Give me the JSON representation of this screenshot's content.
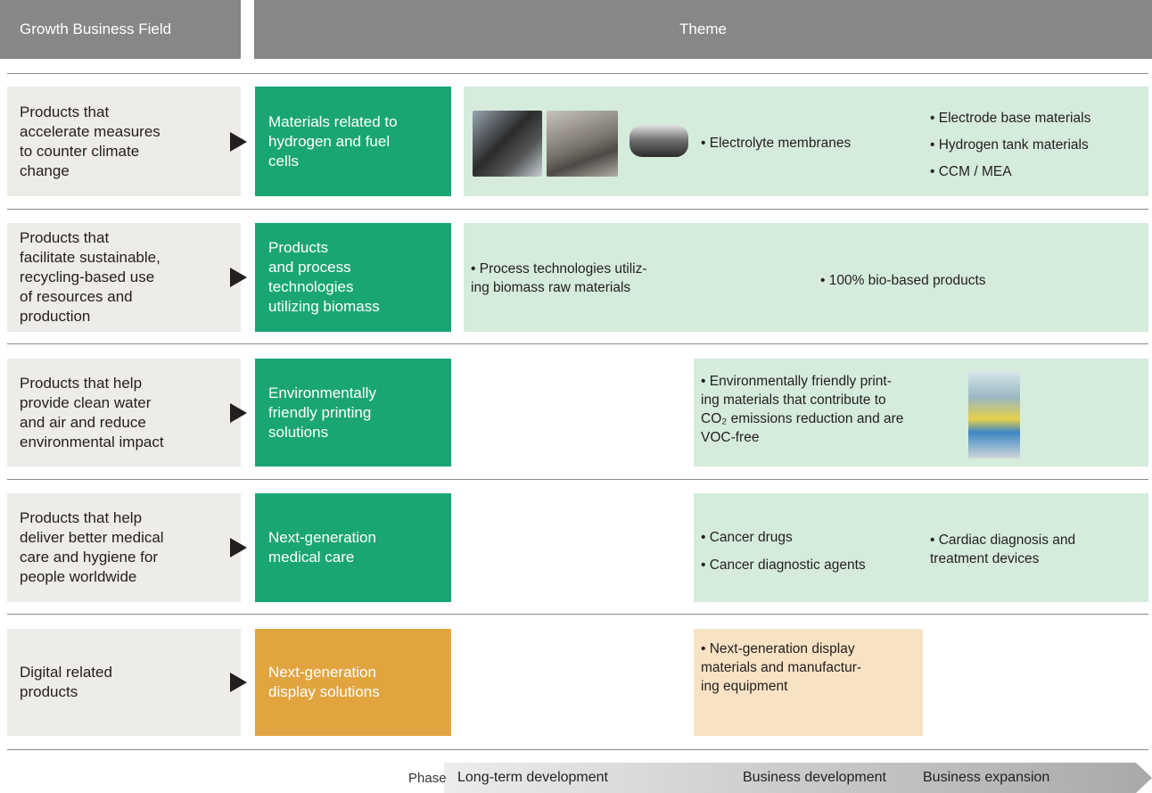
{
  "header": {
    "field_label": "Growth Business Field",
    "theme_label": "Theme"
  },
  "rows": [
    {
      "field": "Products that\naccelerate measures\nto counter climate\nchange",
      "theme": "Materials related to\nhydrogen and fuel\ncells",
      "items": [
        "• Electrolyte membranes",
        "• Electrode base materials",
        "• Hydrogen tank materials",
        "• CCM / MEA"
      ]
    },
    {
      "field": "Products that\nfacilitate sustainable,\nrecycling-based use\nof resources and\nproduction",
      "theme": "Products\nand process\ntechnologies\nutilizing biomass",
      "items": [
        "• Process technologies utiliz-\ning biomass raw materials",
        "• 100% bio-based products"
      ]
    },
    {
      "field": "Products that help\nprovide clean water\nand air and reduce\nenvironmental impact",
      "theme": "Environmentally\nfriendly printing\nsolutions",
      "items": [
        "• Environmentally friendly print-\ning materials that contribute to\nCO₂ emissions reduction and are\nVOC-free"
      ]
    },
    {
      "field": "Products that help\ndeliver better medical\ncare and hygiene for\npeople worldwide",
      "theme": "Next-generation\nmedical care",
      "items": [
        "• Cancer drugs",
        "• Cancer diagnostic agents",
        "• Cardiac diagnosis and\ntreatment devices"
      ]
    },
    {
      "field": "Digital related\nproducts",
      "theme": "Next-generation\ndisplay solutions",
      "items": [
        "• Next-generation display\nmaterials and manufactur-\ning equipment"
      ]
    }
  ],
  "phase": {
    "label": "Phase",
    "stages": [
      "Long-term development",
      "Business development",
      "Business expansion"
    ]
  }
}
